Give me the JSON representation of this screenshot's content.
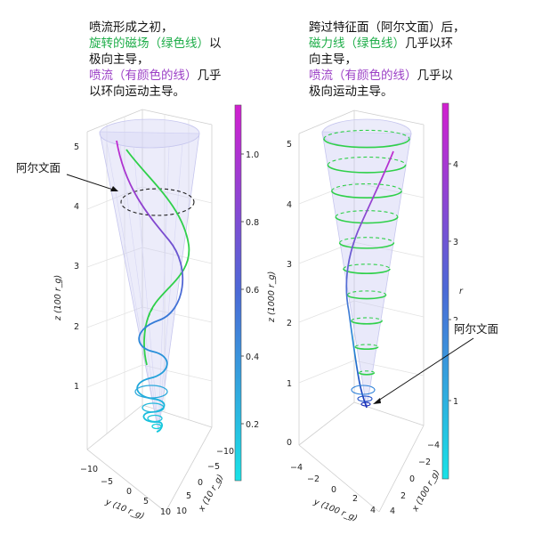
{
  "left_panel": {
    "caption_line1": "喷流形成之初，",
    "caption_line2_green": "旋转的磁场（绿色线）",
    "caption_line2_rest": "以",
    "caption_line3": "极向主导，",
    "caption_line4_purple": "喷流（有颜色的线）",
    "caption_line4_rest": "几乎",
    "caption_line5": "以环向运动主导。",
    "annotation": "阿尔文面",
    "z_ticks": [
      "5",
      "4",
      "3",
      "2",
      "1"
    ],
    "z_label": "z (100 r_g)",
    "y_ticks": [
      "−10",
      "−5",
      "0",
      "5",
      "10"
    ],
    "y_label": "y (10 r_g)",
    "x_ticks": [
      "−10",
      "−5",
      "0",
      "5",
      "10"
    ],
    "x_label": "x (10 r_g)",
    "colorbar_ticks": [
      "1.0",
      "0.8",
      "0.6",
      "0.4",
      "0.2"
    ]
  },
  "right_panel": {
    "caption_line1": "跨过特征面（阿尔文面）后，",
    "caption_line2_green": "磁力线（绿色线）",
    "caption_line2_rest": "几乎以环",
    "caption_line3": "向主导，",
    "caption_line4_purple": "喷流（有颜色的线）",
    "caption_line4_rest": "几乎以",
    "caption_line5": "极向运动主导。",
    "annotation": "阿尔文面",
    "z_ticks": [
      "5",
      "4",
      "3",
      "2",
      "1",
      "0"
    ],
    "z_label": "z (1000 r_g)",
    "y_ticks": [
      "−4",
      "−2",
      "0",
      "2",
      "4"
    ],
    "y_label": "y (100 r_g)",
    "x_ticks": [
      "−4",
      "−2",
      "0",
      "2",
      "4"
    ],
    "x_label": "x (100 r_g)",
    "colorbar_ticks": [
      "4",
      "3",
      "2",
      "1"
    ],
    "colorbar_label": "r"
  },
  "colors": {
    "field_line": "#2ecc40",
    "jet_low": "#19d4e0",
    "jet_mid": "#3a5fd0",
    "jet_high": "#c021c9",
    "cone": "#b7b7ee"
  }
}
